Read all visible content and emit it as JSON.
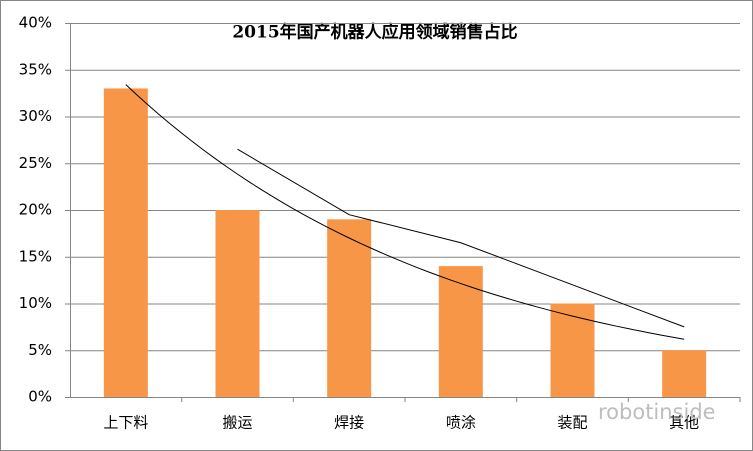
{
  "chart_data": {
    "type": "bar",
    "title": "2015年国产机器人应用领域销售占比",
    "categories": [
      "上下料",
      "搬运",
      "焊接",
      "喷涂",
      "装配",
      "其他"
    ],
    "values": [
      33,
      20,
      19,
      14,
      10,
      5
    ],
    "color": "#f79646",
    "ylim": [
      0,
      40
    ],
    "yticks": [
      {
        "value": 0,
        "label": "0%"
      },
      {
        "value": 5,
        "label": "5%"
      },
      {
        "value": 10,
        "label": "10%"
      },
      {
        "value": 15,
        "label": "15%"
      },
      {
        "value": 20,
        "label": "20%"
      },
      {
        "value": 25,
        "label": "25%"
      },
      {
        "value": 30,
        "label": "30%"
      },
      {
        "value": 35,
        "label": "35%"
      },
      {
        "value": 40,
        "label": "40%"
      }
    ],
    "grid": true,
    "trendlines": [
      "exponential",
      "moving-average"
    ],
    "watermark": "robotinside"
  }
}
